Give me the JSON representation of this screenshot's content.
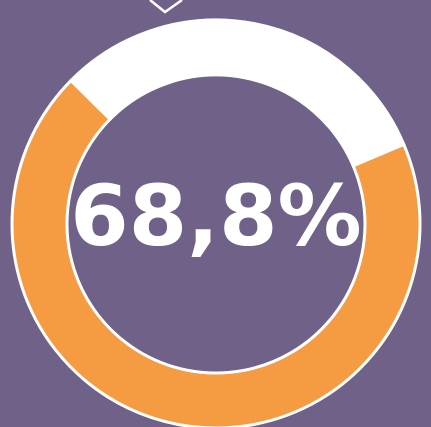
{
  "chart_data": {
    "type": "donut",
    "values": [
      68.8,
      31.2
    ],
    "value_labels": [
      "68,8%",
      null
    ],
    "colors": [
      "#f59b42",
      "#ffffff"
    ]
  }
}
